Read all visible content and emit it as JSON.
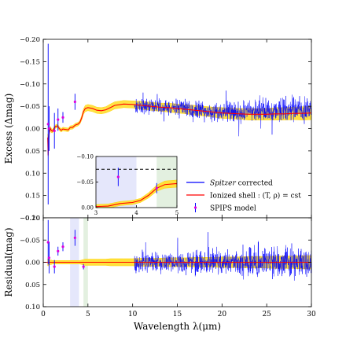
{
  "chart_data": [
    {
      "type": "line",
      "panel": "main",
      "xlim": [
        0,
        30
      ],
      "ylim": [
        -0.2,
        0.2
      ],
      "y_inverted": true,
      "yticks": [
        "−0.20",
        "−0.15",
        "−0.10",
        "−0.05",
        "0.00",
        "0.05",
        "0.10",
        "0.15",
        "0.20"
      ],
      "ylabel": "Excess (Δmag)",
      "legend_position": "lower-right",
      "series": [
        {
          "name": "Spitzer corrected",
          "name_prefix": "Spitzer",
          "name_suffix": " corrected",
          "color": "#0000ff",
          "x_range": [
            10.2,
            30
          ],
          "mean": [
            [
              10.2,
              -0.048
            ],
            [
              12,
              -0.05
            ],
            [
              15,
              -0.047
            ],
            [
              18,
              -0.04
            ],
            [
              20,
              -0.036
            ],
            [
              22,
              -0.036
            ],
            [
              25,
              -0.04
            ],
            [
              28,
              -0.042
            ],
            [
              30,
              -0.043
            ]
          ],
          "noise_amplitude": [
            [
              10.2,
              0.022
            ],
            [
              15,
              0.026
            ],
            [
              20,
              0.032
            ],
            [
              25,
              0.038
            ],
            [
              30,
              0.044
            ]
          ]
        },
        {
          "name": "Ionized shell : (T, ρ) = cst",
          "color": "#ff0000",
          "band_color": "#ffd000",
          "band_fill": "#ffe13a",
          "x": [
            0.5,
            0.55,
            0.62,
            0.7,
            0.8,
            0.9,
            1.0,
            1.1,
            1.2,
            1.4,
            1.6,
            1.8,
            2.0,
            2.2,
            2.5,
            2.8,
            3.0,
            3.3,
            3.6,
            3.9,
            4.1,
            4.3,
            4.5,
            4.7,
            5.0,
            5.5,
            6.0,
            6.5,
            7.0,
            7.5,
            8.0,
            9.0,
            10.0,
            11.0,
            12.0,
            13.0,
            14.0,
            15.0,
            16.0,
            17.0,
            18.0,
            19.0,
            20.0,
            21.0,
            22.0,
            23.0,
            24.0,
            25.0,
            26.0,
            27.0,
            28.0,
            29.0,
            30.0
          ],
          "y": [
            0.02,
            0.06,
            0.02,
            0.005,
            0.0,
            0.004,
            0.006,
            0.004,
            0.0,
            -0.005,
            -0.006,
            0.0,
            0.004,
            0.001,
            0.002,
            0.003,
            -0.002,
            -0.003,
            -0.008,
            -0.01,
            -0.014,
            -0.024,
            -0.038,
            -0.045,
            -0.047,
            -0.045,
            -0.041,
            -0.04,
            -0.042,
            -0.047,
            -0.052,
            -0.055,
            -0.054,
            -0.052,
            -0.05,
            -0.048,
            -0.047,
            -0.045,
            -0.043,
            -0.041,
            -0.039,
            -0.037,
            -0.035,
            -0.034,
            -0.033,
            -0.032,
            -0.032,
            -0.032,
            -0.033,
            -0.033,
            -0.034,
            -0.034,
            -0.035
          ],
          "band_halfwidth": [
            0.008,
            0.008,
            0.008,
            0.006,
            0.005,
            0.005,
            0.004,
            0.004,
            0.004,
            0.004,
            0.004,
            0.004,
            0.004,
            0.004,
            0.004,
            0.004,
            0.004,
            0.004,
            0.004,
            0.004,
            0.004,
            0.005,
            0.006,
            0.007,
            0.007,
            0.007,
            0.007,
            0.007,
            0.007,
            0.008,
            0.008,
            0.008,
            0.008,
            0.009,
            0.009,
            0.009,
            0.01,
            0.01,
            0.01,
            0.011,
            0.011,
            0.011,
            0.012,
            0.012,
            0.012,
            0.013,
            0.013,
            0.013,
            0.014,
            0.014,
            0.014,
            0.015,
            0.015
          ]
        },
        {
          "name": "SPIPS model",
          "marker_color": "#dd00dd",
          "err_color": "#0000ff",
          "points": [
            [
              0.55,
              -0.01,
              0.18
            ],
            [
              0.65,
              0.0,
              0.05
            ],
            [
              1.25,
              0.005,
              0.04
            ],
            [
              1.65,
              -0.02,
              0.025
            ],
            [
              2.2,
              -0.025,
              0.012
            ],
            [
              3.55,
              -0.06,
              0.018
            ]
          ]
        }
      ]
    },
    {
      "type": "line",
      "panel": "inset",
      "xlim": [
        3,
        5
      ],
      "ylim": [
        -0.1,
        0.0
      ],
      "y_inverted": true,
      "xticks": [
        "3",
        "4",
        "5"
      ],
      "yticks": [
        "−0.10",
        "−0.05",
        "0.00"
      ],
      "shaded_regions": [
        {
          "x": [
            3.0,
            4.0
          ],
          "color": "#e5e7fb"
        },
        {
          "x": [
            4.5,
            5.0
          ],
          "color": "#e3f0e0"
        }
      ],
      "dashed_level": -0.075,
      "points": [
        [
          3.55,
          -0.06,
          0.018
        ],
        [
          4.5,
          -0.038,
          0.01
        ]
      ]
    },
    {
      "type": "line",
      "panel": "residual",
      "xlim": [
        0,
        30
      ],
      "ylim": [
        -0.1,
        0.1
      ],
      "y_inverted": true,
      "xticks": [
        "0",
        "5",
        "10",
        "15",
        "20",
        "25",
        "30"
      ],
      "yticks": [
        "−0.10",
        "−0.05",
        "0.00",
        "0.05",
        "0.10"
      ],
      "xlabel": "Wavelength λ(μm)",
      "ylabel": "Residual(mag)",
      "shaded_regions": [
        {
          "x": [
            3.0,
            4.0
          ],
          "color": "#e5e7fb"
        },
        {
          "x": [
            4.5,
            5.0
          ],
          "color": "#e3f0e0"
        }
      ],
      "points": [
        [
          0.55,
          -0.045,
          0.05
        ],
        [
          0.65,
          -0.01,
          0.035
        ],
        [
          1.25,
          0.01,
          0.015
        ],
        [
          1.65,
          -0.025,
          0.01
        ],
        [
          2.2,
          -0.035,
          0.01
        ],
        [
          3.55,
          -0.055,
          0.018
        ],
        [
          4.5,
          0.01,
          0.006
        ]
      ],
      "noise_amplitude": [
        [
          10.2,
          0.03
        ],
        [
          15,
          0.034
        ],
        [
          20,
          0.04
        ],
        [
          25,
          0.046
        ],
        [
          30,
          0.05
        ]
      ]
    }
  ]
}
